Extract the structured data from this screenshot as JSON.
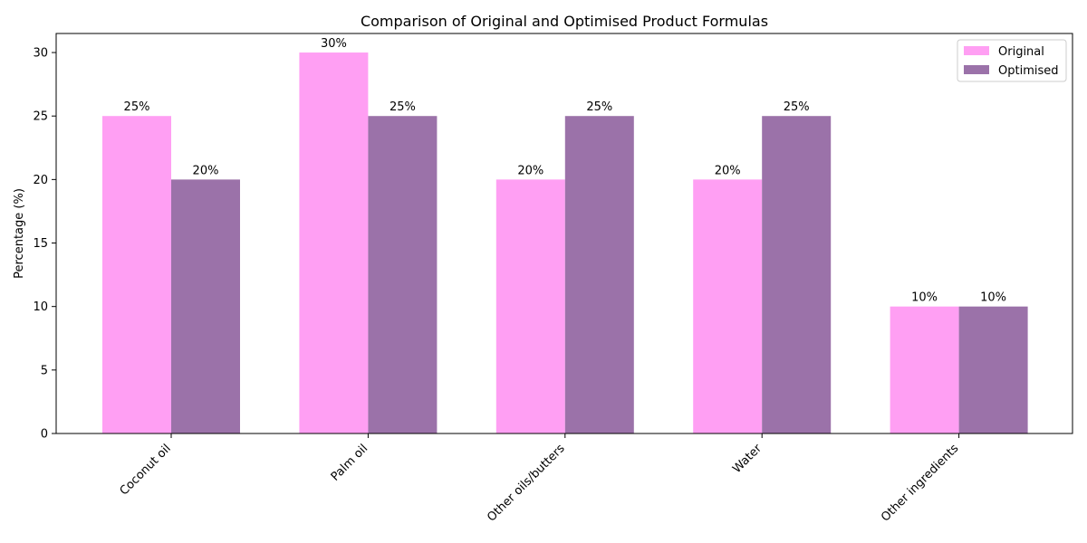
{
  "chart_data": {
    "type": "bar",
    "title": "Comparison of Original and Optimised Product Formulas",
    "xlabel": "",
    "ylabel": "Percentage (%)",
    "categories": [
      "Coconut oil",
      "Palm oil",
      "Other oils/butters",
      "Water",
      "Other ingredients"
    ],
    "series": [
      {
        "name": "Original",
        "values": [
          25,
          30,
          20,
          20,
          10
        ],
        "labels": [
          "25%",
          "30%",
          "20%",
          "20%",
          "10%"
        ],
        "color": "#ff9ff3"
      },
      {
        "name": "Optimised",
        "values": [
          20,
          25,
          25,
          25,
          10
        ],
        "labels": [
          "20%",
          "25%",
          "25%",
          "25%",
          "10%"
        ],
        "color": "#9b72a9"
      }
    ],
    "ylim": [
      0,
      31.5
    ],
    "yticks": [
      0,
      5,
      10,
      15,
      20,
      25,
      30
    ],
    "grid": false,
    "legend": "top-right"
  }
}
